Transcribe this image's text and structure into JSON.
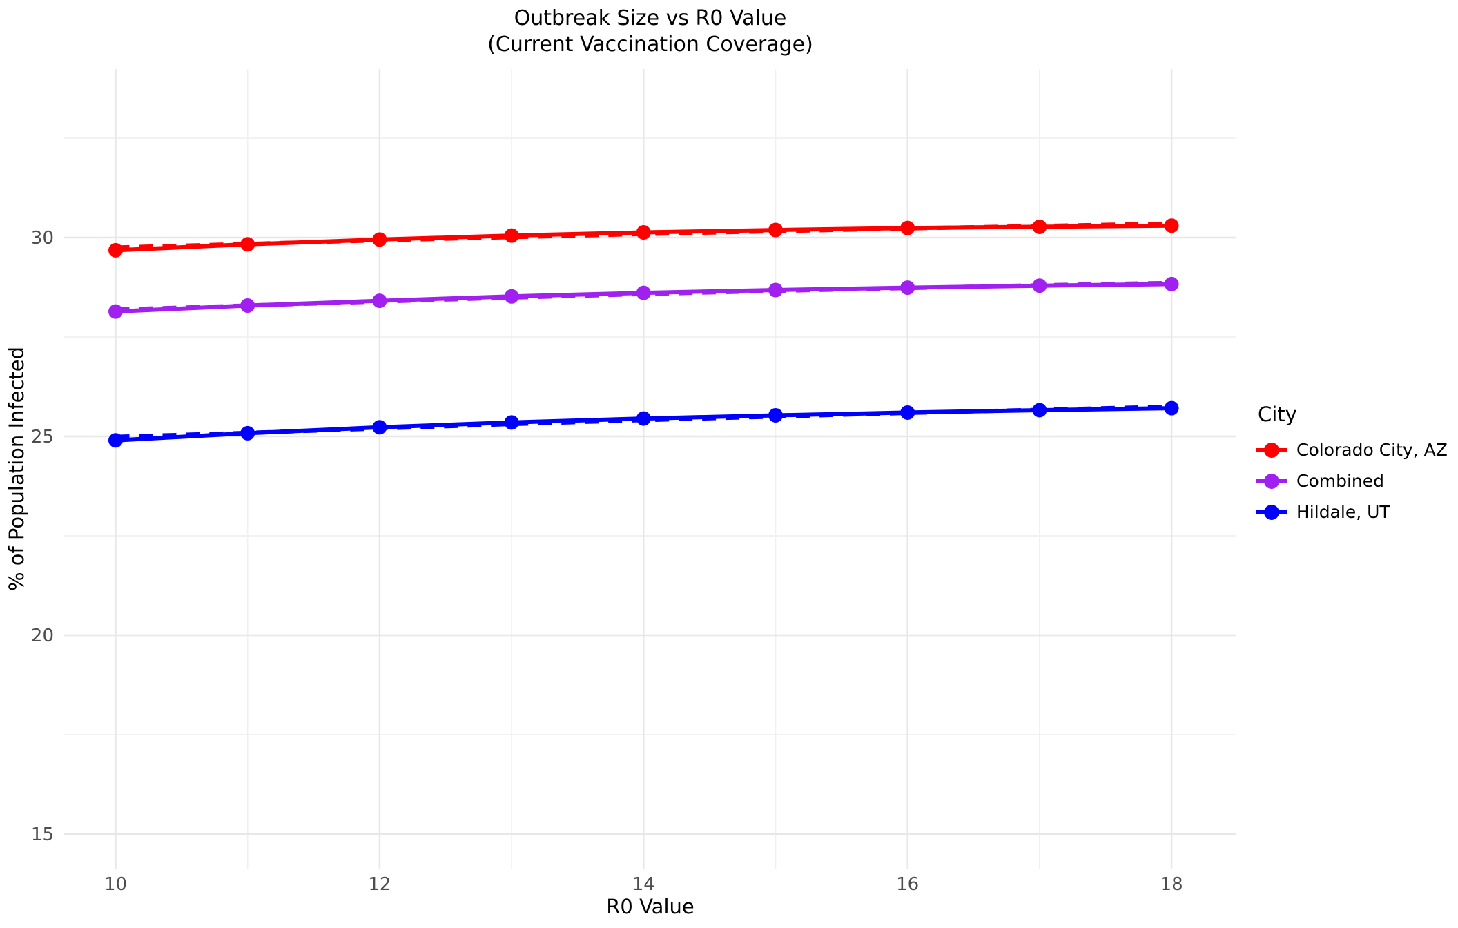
{
  "title": {
    "line1": "Outbreak Size vs R0 Value",
    "line2": "(Current Vaccination Coverage)"
  },
  "axes": {
    "x_label": "R0 Value",
    "y_label": "% of Population Infected"
  },
  "legend": {
    "title": "City",
    "items": [
      {
        "label": "Colorado City, AZ",
        "color": "#FF0000"
      },
      {
        "label": "Combined",
        "color": "#A020F0"
      },
      {
        "label": "Hildale, UT",
        "color": "#0000FF"
      }
    ]
  },
  "chart_data": {
    "type": "line",
    "title": "Outbreak Size vs R0 Value (Current Vaccination Coverage)",
    "xlabel": "R0 Value",
    "ylabel": "% of Population Infected",
    "legend_position": "right",
    "grid": true,
    "x": [
      10,
      11,
      12,
      13,
      14,
      15,
      16,
      17,
      18
    ],
    "x_ticks": [
      10,
      12,
      14,
      16,
      18
    ],
    "x_minor_ticks": [
      11,
      13,
      15,
      17
    ],
    "y_ticks": [
      15,
      20,
      25,
      30
    ],
    "y_minor_ticks": [
      17.5,
      22.5,
      27.5,
      32.5
    ],
    "x_range": [
      9.61,
      18.5
    ],
    "y_range": [
      14.13,
      34.24
    ],
    "series": [
      {
        "name": "Colorado City, AZ",
        "color": "#FF0000",
        "marker": "circle",
        "line_style": "solid",
        "values": [
          29.68,
          29.83,
          29.95,
          30.05,
          30.13,
          30.19,
          30.24,
          30.27,
          30.3
        ],
        "fit_style": "dashed",
        "fit_values": [
          29.75,
          29.84,
          29.93,
          30.01,
          30.09,
          30.16,
          30.23,
          30.29,
          30.35
        ]
      },
      {
        "name": "Combined",
        "color": "#A020F0",
        "marker": "circle",
        "line_style": "solid",
        "values": [
          28.14,
          28.29,
          28.41,
          28.52,
          28.61,
          28.68,
          28.74,
          28.79,
          28.83
        ],
        "fit_style": "dashed",
        "fit_values": [
          28.19,
          28.29,
          28.39,
          28.49,
          28.58,
          28.66,
          28.73,
          28.8,
          28.86
        ]
      },
      {
        "name": "Hildale, UT",
        "color": "#0000FF",
        "marker": "circle",
        "line_style": "solid",
        "values": [
          24.9,
          25.08,
          25.23,
          25.35,
          25.45,
          25.53,
          25.6,
          25.66,
          25.71
        ],
        "fit_style": "dashed",
        "fit_values": [
          24.99,
          25.09,
          25.2,
          25.31,
          25.41,
          25.5,
          25.59,
          25.67,
          25.75
        ]
      }
    ]
  }
}
